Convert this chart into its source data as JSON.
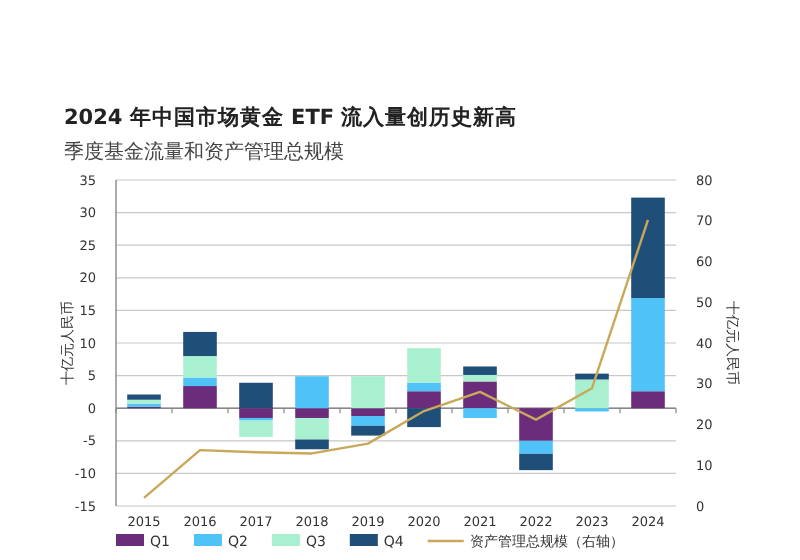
{
  "chart_data": {
    "type": "bar",
    "stacked": true,
    "title": "2024 年中国市场黄金 ETF 流入量创历史新高",
    "subtitle": "季度基金流量和资产管理总规模",
    "ylabel": "十亿元人民币",
    "y2label": "十亿元人民币",
    "categories": [
      "2015",
      "2016",
      "2017",
      "2018",
      "2019",
      "2020",
      "2021",
      "2022",
      "2023",
      "2024"
    ],
    "series": [
      {
        "name": "Q1",
        "color": "#6b2d7b",
        "values": [
          0.2,
          3.4,
          -1.5,
          -1.5,
          -1.2,
          2.6,
          4.1,
          -5.0,
          0,
          2.6
        ]
      },
      {
        "name": "Q2",
        "color": "#4fc3f7",
        "values": [
          0.5,
          1.3,
          -0.4,
          4.9,
          -1.5,
          1.3,
          -1.5,
          -2.0,
          -0.5,
          14.3
        ]
      },
      {
        "name": "Q3",
        "color": "#a8f0d0",
        "values": [
          0.6,
          3.3,
          -2.5,
          -3.3,
          4.9,
          5.3,
          1.0,
          0,
          4.4,
          0
        ]
      },
      {
        "name": "Q4",
        "color": "#1f4e79",
        "values": [
          0.8,
          3.7,
          3.9,
          -1.5,
          -1.5,
          -2.9,
          1.3,
          -2.5,
          0.9,
          15.4
        ]
      },
      {
        "name": "资产管理总规模（右轴）",
        "type": "line",
        "axis": "y2",
        "color": "#c8a85a",
        "values": [
          2.0,
          13.7,
          13.2,
          12.9,
          15.3,
          23.3,
          28.0,
          21.2,
          28.9,
          70.2
        ]
      }
    ],
    "ylim": [
      -15,
      35
    ],
    "yticks": [
      -15,
      -10,
      -5,
      0,
      5,
      10,
      15,
      20,
      25,
      30,
      35
    ],
    "y2lim": [
      0,
      80
    ],
    "y2ticks": [
      0,
      10,
      20,
      30,
      40,
      50,
      60,
      70,
      80
    ],
    "grid": "y",
    "legend": "bottom"
  }
}
